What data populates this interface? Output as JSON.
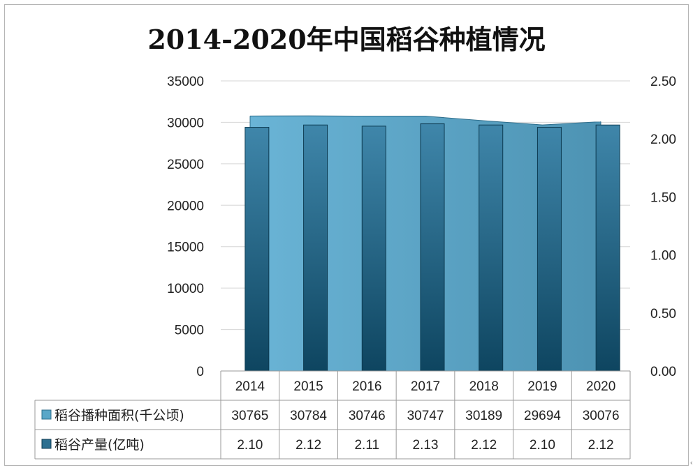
{
  "chart_data": {
    "type": "bar",
    "title": "2014-2020年中国稻谷种植情况",
    "categories": [
      "2014",
      "2015",
      "2016",
      "2017",
      "2018",
      "2019",
      "2020"
    ],
    "series": [
      {
        "name": "稻谷播种面积(千公顷)",
        "type": "area",
        "axis": "left",
        "color": "#5aa7c8",
        "values": [
          30765,
          30784,
          30746,
          30747,
          30189,
          29694,
          30076
        ]
      },
      {
        "name": "稻谷产量(亿吨)",
        "type": "bar",
        "axis": "right",
        "color": "#2c6f90",
        "values": [
          2.1,
          2.12,
          2.11,
          2.13,
          2.12,
          2.1,
          2.12
        ],
        "labels": [
          "2.10",
          "2.12",
          "2.11",
          "2.13",
          "2.12",
          "2.10",
          "2.12"
        ]
      }
    ],
    "y_left": {
      "min": 0,
      "max": 35000,
      "ticks": [
        "0",
        "5000",
        "10000",
        "15000",
        "20000",
        "25000",
        "30000",
        "35000"
      ]
    },
    "y_right": {
      "min": 0,
      "max": 2.5,
      "ticks": [
        "0.00",
        "0.50",
        "1.00",
        "1.50",
        "2.00",
        "2.50"
      ]
    },
    "grid": true,
    "legend": "data-table-below"
  }
}
